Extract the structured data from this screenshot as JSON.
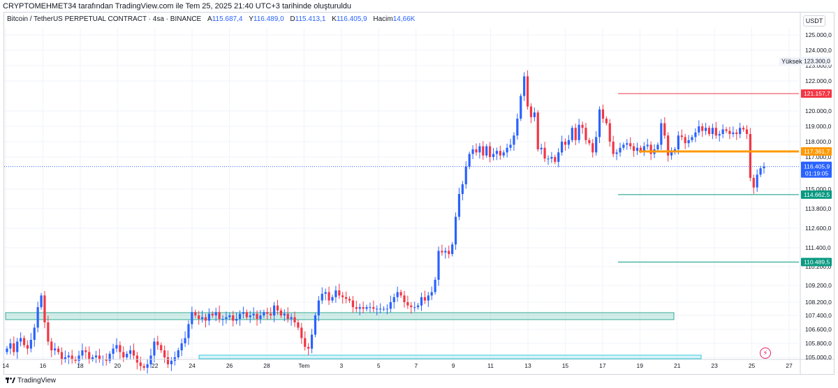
{
  "header": {
    "published_line": "CRYPTOMEHMET34 tarafından TradingView.com ile Tem 25, 2025 21:40 UTC+3 tarihinde oluşturuldu"
  },
  "legend": {
    "symbol": "Bitcoin / TetherUS PERPETUAL CONTRACT · 4sa · BINANCE",
    "open_label": "A",
    "open_value": "115.687,4",
    "high_label": "Y",
    "high_value": "116.489,0",
    "low_label": "D",
    "low_value": "115.413,1",
    "close_label": "K",
    "close_value": "116.405,9",
    "volume_label": "Hacim",
    "volume_value": "14,66K"
  },
  "price_axis": {
    "currency_button": "USDT",
    "ticks": [
      "125.000,0",
      "124.000,0",
      "123.000,0",
      "122.000,0",
      "120.000,0",
      "119.000,0",
      "118.000,0",
      "117.000,0",
      "115.000,0",
      "113.800,0",
      "112.600,0",
      "111.400,0",
      "110.200,0",
      "109.200,0",
      "108.200,0",
      "107.400,0",
      "106.600,0",
      "105.800,0",
      "105.000,0"
    ],
    "high_tag": "Yüksek",
    "high_value": "123.300,0",
    "level_labels": [
      {
        "text": "121.157,7",
        "color": "#f23645"
      },
      {
        "text": "117.361,7",
        "color": "#ff9800"
      },
      {
        "text": "114.662,5",
        "color": "#089981"
      },
      {
        "text": "110.489,5",
        "color": "#089981"
      }
    ],
    "current_price": "116.405,9",
    "countdown": "01:19:05",
    "current_color": "#2962ff"
  },
  "time_axis": {
    "labels": [
      "14",
      "16",
      "18",
      "20",
      "22",
      "24",
      "26",
      "28",
      "Tem",
      "3",
      "5",
      "7",
      "9",
      "11",
      "13",
      "15",
      "17",
      "19",
      "21",
      "23",
      "25",
      "27"
    ]
  },
  "footer": {
    "brand": "TradingView"
  },
  "chart_data": {
    "type": "candlestick",
    "title": "Bitcoin / TetherUS PERPETUAL CONTRACT · 4sa · BINANCE",
    "up_color": "#2962ff",
    "down_color": "#f23645",
    "x_labels": [
      "14",
      "16",
      "18",
      "20",
      "22",
      "24",
      "26",
      "28",
      "Tem",
      "3",
      "5",
      "7",
      "9",
      "11",
      "13",
      "15",
      "17",
      "19",
      "21",
      "23",
      "25",
      "27"
    ],
    "levels": [
      {
        "price": 121157.7,
        "color": "#f23645",
        "label": "121.157,7"
      },
      {
        "price": 117361.7,
        "color": "#ff9800",
        "label": "117.361,7"
      },
      {
        "price": 114662.5,
        "color": "#089981",
        "label": "114.662,5"
      },
      {
        "price": 110489.5,
        "color": "#089981",
        "label": "110.489,5"
      }
    ],
    "zones": [
      {
        "low": 107250,
        "high": 107550,
        "color": "#089981"
      },
      {
        "low": 104950,
        "high": 105050,
        "color": "#00bcd4"
      }
    ],
    "last_price": 116405.9,
    "high": 123300,
    "series_close": [
      105500,
      105800,
      105300,
      105900,
      106100,
      105700,
      105500,
      106000,
      106700,
      107900,
      108600,
      107000,
      105900,
      105400,
      105500,
      105300,
      104900,
      105000,
      105100,
      104900,
      104800,
      105100,
      105400,
      105300,
      104900,
      105000,
      105100,
      104900,
      104900,
      104800,
      105200,
      105500,
      105700,
      105300,
      105000,
      105200,
      105400,
      105100,
      104700,
      104500,
      104400,
      104600,
      105100,
      105900,
      105700,
      105400,
      105000,
      104600,
      104800,
      105000,
      105400,
      105800,
      106100,
      106900,
      107600,
      107400,
      107200,
      107300,
      107100,
      107500,
      107400,
      107600,
      107200,
      107200,
      107300,
      107400,
      107100,
      107200,
      107500,
      107600,
      107300,
      107400,
      107500,
      107200,
      107400,
      107600,
      107500,
      107400,
      108000,
      107700,
      107400,
      107500,
      107200,
      107300,
      107000,
      106700,
      106100,
      105600,
      105500,
      106300,
      107400,
      108300,
      108700,
      108800,
      108300,
      108500,
      108900,
      108600,
      108500,
      108400,
      108300,
      107900,
      107800,
      107900,
      107800,
      107900,
      107900,
      107800,
      107800,
      107800,
      107800,
      107800,
      108200,
      108500,
      108800,
      108600,
      108200,
      108000,
      107900,
      107900,
      108000,
      108500,
      108300,
      108600,
      108800,
      109500,
      111200,
      111100,
      111200,
      111000,
      111600,
      113300,
      114700,
      115300,
      116400,
      117200,
      117500,
      117300,
      117700,
      117100,
      117700,
      117000,
      117200,
      117400,
      117100,
      117300,
      117600,
      117800,
      118400,
      119500,
      121000,
      122300,
      120300,
      119600,
      119900,
      117500,
      117600,
      116900,
      116900,
      117000,
      116700,
      117300,
      118000,
      117800,
      118100,
      118900,
      118100,
      119100,
      118900,
      118100,
      117900,
      117300,
      118300,
      120100,
      119500,
      119200,
      118000,
      117200,
      117300,
      117600,
      117800,
      117900,
      117700,
      117400,
      117600,
      117400,
      117700,
      117800,
      117200,
      117500,
      117800,
      119200,
      118400,
      117100,
      117300,
      117500,
      118400,
      118300,
      117900,
      118100,
      118300,
      118600,
      119000,
      118700,
      118900,
      118500,
      118900,
      118400,
      118500,
      118800,
      118700,
      118500,
      118600,
      118500,
      118900,
      118800,
      118500,
      115700,
      115100,
      115900,
      116300,
      116400
    ]
  }
}
